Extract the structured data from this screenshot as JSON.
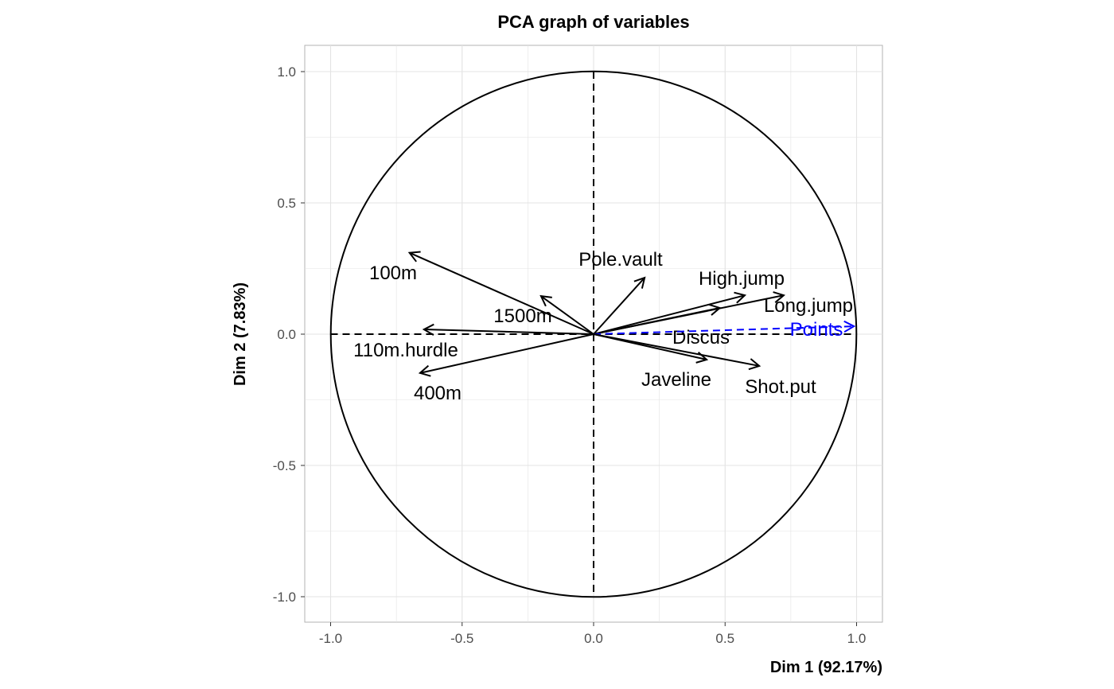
{
  "chart_data": {
    "type": "scatter",
    "subtype": "pca-variable-correlation-circle",
    "title": "PCA graph of variables",
    "xlabel": "Dim 1 (92.17%)",
    "ylabel": "Dim 2 (7.83%)",
    "xlim": [
      -1.1,
      1.1
    ],
    "ylim": [
      -1.1,
      1.1
    ],
    "xticks": [
      "-1.0",
      "-0.5",
      "0.0",
      "0.5",
      "1.0"
    ],
    "yticks": [
      "-1.0",
      "-0.5",
      "0.0",
      "0.5",
      "1.0"
    ],
    "grid": true,
    "variables": [
      {
        "name": "100m",
        "x": -0.7,
        "y": 0.31,
        "color": "#000000"
      },
      {
        "name": "1500m",
        "x": -0.2,
        "y": 0.145,
        "color": "#000000"
      },
      {
        "name": "110m.hurdle",
        "x": -0.645,
        "y": 0.018,
        "color": "#000000"
      },
      {
        "name": "400m",
        "x": -0.66,
        "y": -0.148,
        "color": "#000000"
      },
      {
        "name": "Pole.vault",
        "x": 0.194,
        "y": 0.215,
        "color": "#000000"
      },
      {
        "name": "High.jump",
        "x": 0.575,
        "y": 0.148,
        "color": "#000000"
      },
      {
        "name": "Long.jump",
        "x": 0.723,
        "y": 0.148,
        "color": "#000000"
      },
      {
        "name": "Discus",
        "x": 0.48,
        "y": 0.1,
        "color": "#000000"
      },
      {
        "name": "Points",
        "x": 0.99,
        "y": 0.03,
        "color": "#0000ff",
        "supplementary": true
      },
      {
        "name": "Javeline",
        "x": 0.43,
        "y": -0.097,
        "color": "#000000"
      },
      {
        "name": "Shot.put",
        "x": 0.63,
        "y": -0.121,
        "color": "#000000"
      }
    ]
  }
}
